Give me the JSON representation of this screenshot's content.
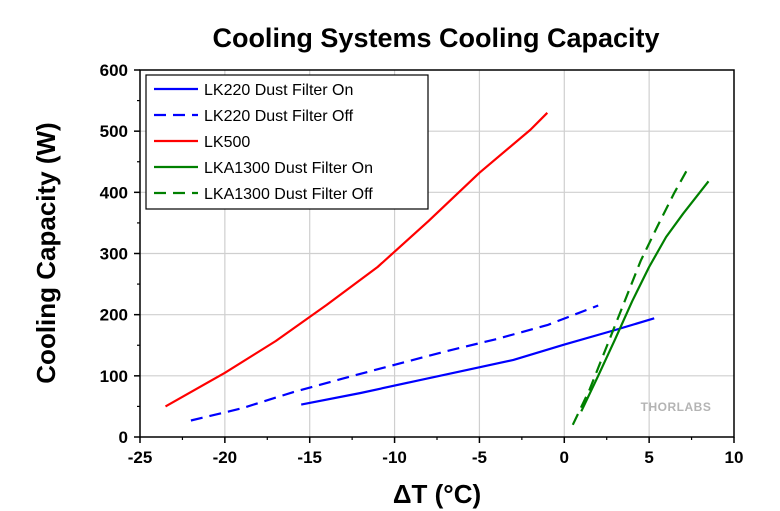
{
  "chart_data": {
    "type": "line",
    "title": "Cooling Systems Cooling Capacity",
    "xlabel": "ΔT (°C)",
    "ylabel": "Cooling Capacity (W)",
    "xlim": [
      -25,
      10
    ],
    "ylim": [
      0,
      600
    ],
    "xticks": [
      -25,
      -20,
      -15,
      -10,
      -5,
      0,
      5,
      10
    ],
    "yticks": [
      0,
      100,
      200,
      300,
      400,
      500,
      600
    ],
    "grid": true,
    "legend_position": "top-left",
    "watermark": "THORLABS",
    "series": [
      {
        "name": "LK220 Dust Filter On",
        "color": "#0000ff",
        "dash": "solid",
        "x": [
          -15.5,
          -12,
          -9,
          -6,
          -3,
          0,
          3,
          5.3
        ],
        "y": [
          53,
          72,
          90,
          108,
          126,
          151,
          175,
          194
        ]
      },
      {
        "name": "LK220 Dust Filter Off",
        "color": "#0000ff",
        "dash": "dashed",
        "x": [
          -22,
          -19,
          -16,
          -13,
          -10,
          -7,
          -4,
          -1,
          2
        ],
        "y": [
          27,
          47,
          73,
          96,
          118,
          140,
          160,
          183,
          215
        ]
      },
      {
        "name": "LK500",
        "color": "#ff0000",
        "dash": "solid",
        "x": [
          -23.5,
          -20,
          -17,
          -14,
          -11,
          -8,
          -5,
          -2,
          -1
        ],
        "y": [
          50,
          105,
          157,
          216,
          278,
          353,
          432,
          502,
          530
        ]
      },
      {
        "name": "LKA1300 Dust Filter On",
        "color": "#008000",
        "dash": "solid",
        "x": [
          1,
          2,
          3,
          4,
          5,
          6,
          7,
          8.5
        ],
        "y": [
          42,
          100,
          160,
          222,
          278,
          327,
          365,
          418
        ]
      },
      {
        "name": "LKA1300 Dust Filter Off",
        "color": "#008000",
        "dash": "dashed",
        "x": [
          0.5,
          1.5,
          2.5,
          3.5,
          4.5,
          5.5,
          6.5,
          7.3
        ],
        "y": [
          20,
          78,
          148,
          218,
          288,
          345,
          400,
          440
        ]
      }
    ]
  }
}
